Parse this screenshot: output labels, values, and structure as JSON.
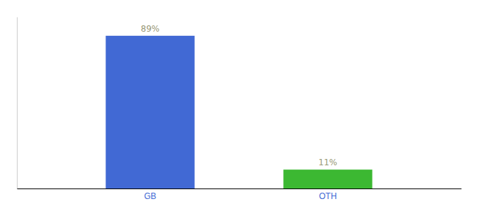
{
  "chart_data": {
    "type": "bar",
    "categories": [
      "GB",
      "OTH"
    ],
    "values": [
      89,
      11
    ],
    "colors": [
      "#4169d4",
      "#3cb832"
    ],
    "data_labels": true,
    "value_labels": [
      "89%",
      "11%"
    ],
    "ylim": [
      0,
      100
    ],
    "tick_labels": "x",
    "grid": false
  }
}
